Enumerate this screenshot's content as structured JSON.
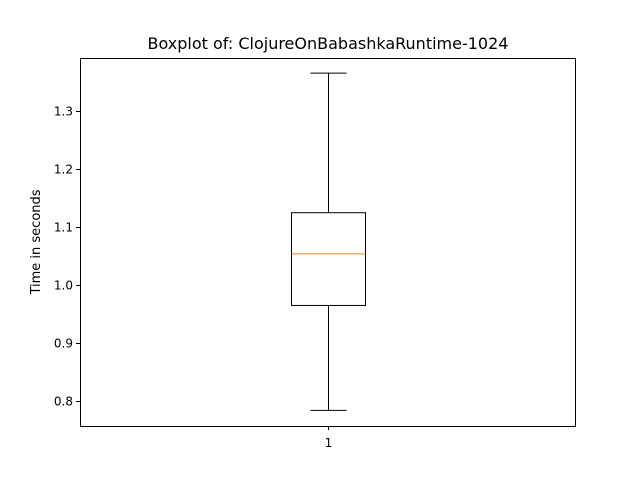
{
  "chart_data": {
    "type": "box",
    "title": "Boxplot of: ClojureOnBabashkaRuntime-1024",
    "xlabel": "",
    "ylabel": "Time in seconds",
    "categories": [
      "1"
    ],
    "ylim": [
      0.757,
      1.392
    ],
    "yticks": [
      0.8,
      0.9,
      1.0,
      1.1,
      1.2,
      1.3
    ],
    "ytick_labels": [
      "0.8",
      "0.9",
      "1.0",
      "1.1",
      "1.2",
      "1.3"
    ],
    "grid": false,
    "series": [
      {
        "category": "1",
        "whisker_low": 0.784,
        "q1": 0.965,
        "median": 1.054,
        "q3": 1.125,
        "whisker_high": 1.366
      }
    ],
    "colors": {
      "median": "#ff7f0e",
      "box": "#000000"
    }
  }
}
